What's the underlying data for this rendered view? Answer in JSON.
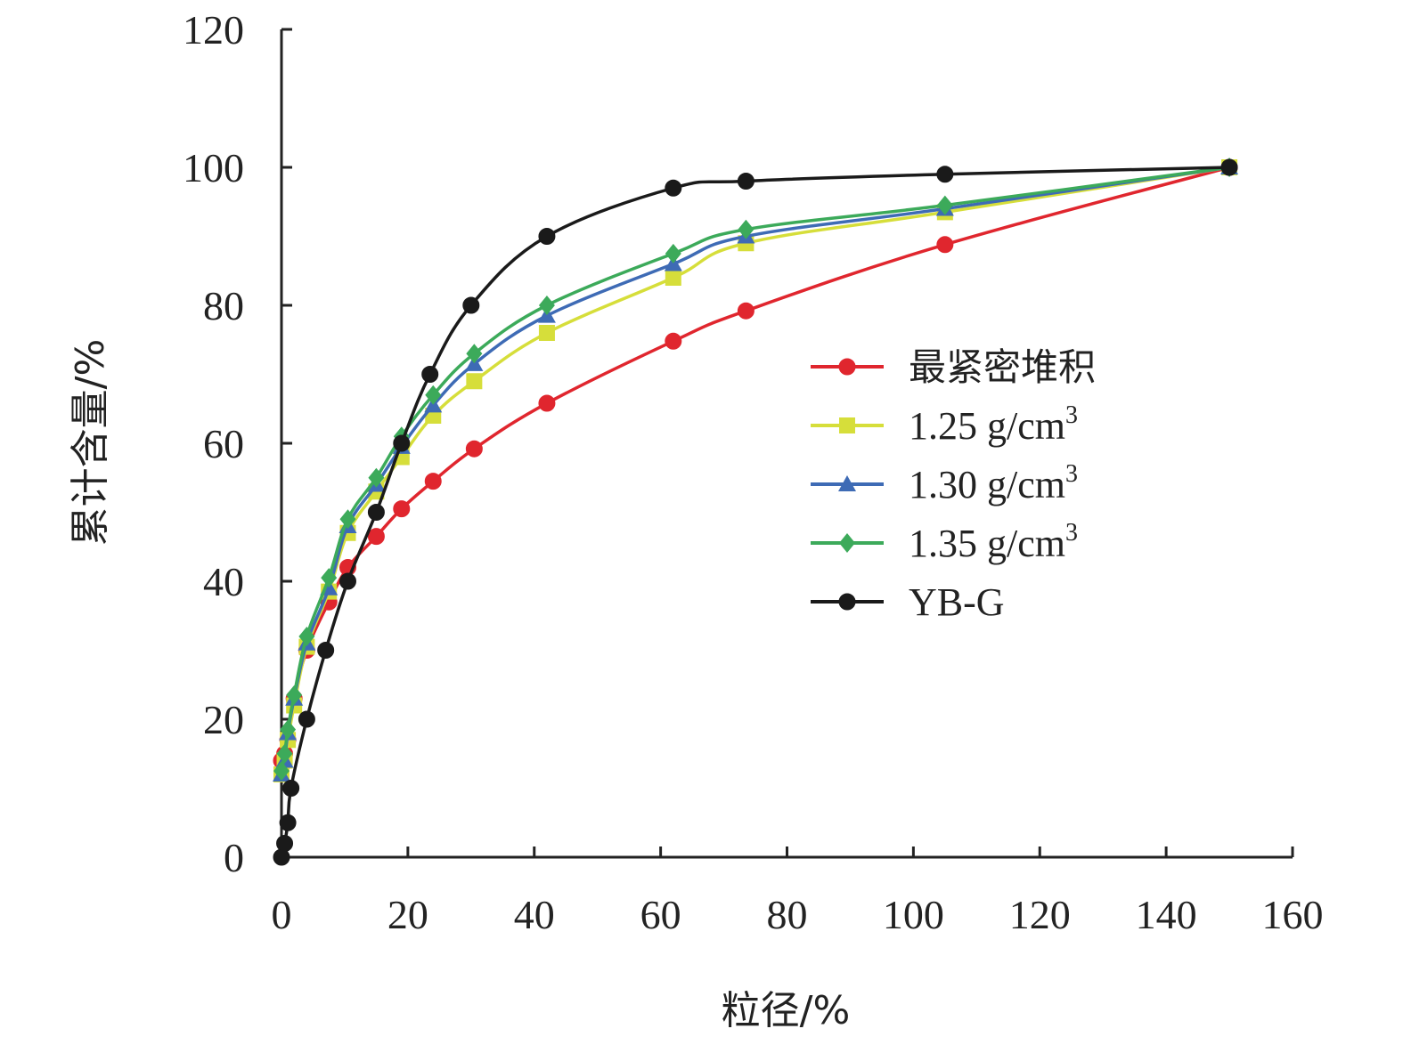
{
  "chart_data": {
    "type": "line",
    "title": "",
    "xlabel": "粒径/%",
    "ylabel": "累计含量/%",
    "xlim": [
      0,
      160
    ],
    "ylim": [
      0,
      120
    ],
    "xticks": [
      0,
      20,
      40,
      60,
      80,
      100,
      120,
      140,
      160
    ],
    "yticks": [
      0,
      20,
      40,
      60,
      80,
      100,
      120
    ],
    "grid": false,
    "legend_position": "right",
    "series": [
      {
        "name": "最紧密堆积",
        "color": "#e0262e",
        "marker": "circle",
        "points": [
          [
            0,
            14
          ],
          [
            0.5,
            15
          ],
          [
            1,
            17
          ],
          [
            2,
            23
          ],
          [
            4,
            30
          ],
          [
            7.5,
            37
          ],
          [
            10.5,
            42
          ],
          [
            15,
            46.5
          ],
          [
            19,
            50.5
          ],
          [
            24,
            54.5
          ],
          [
            30.5,
            59.2
          ],
          [
            42,
            65.8
          ],
          [
            62,
            74.8
          ],
          [
            73.5,
            79.2
          ],
          [
            105,
            88.8
          ],
          [
            150,
            100
          ]
        ]
      },
      {
        "name": "1.25 g/cm",
        "sup": "3",
        "color": "#d6de3a",
        "marker": "square",
        "points": [
          [
            0,
            12
          ],
          [
            0.5,
            14
          ],
          [
            1,
            17
          ],
          [
            2,
            22
          ],
          [
            4,
            30.5
          ],
          [
            7.5,
            38.5
          ],
          [
            10.5,
            47
          ],
          [
            15,
            53
          ],
          [
            19,
            58
          ],
          [
            24,
            64
          ],
          [
            30.5,
            69
          ],
          [
            42,
            76
          ],
          [
            62,
            84
          ],
          [
            73.5,
            89
          ],
          [
            105,
            93.5
          ],
          [
            150,
            100
          ]
        ]
      },
      {
        "name": "1.30 g/cm",
        "sup": "3",
        "color": "#3e6bb5",
        "marker": "triangle",
        "points": [
          [
            0,
            12
          ],
          [
            0.5,
            14
          ],
          [
            1,
            18
          ],
          [
            2,
            23
          ],
          [
            4,
            31
          ],
          [
            7.5,
            39
          ],
          [
            10.5,
            48
          ],
          [
            15,
            54
          ],
          [
            19,
            59.5
          ],
          [
            24,
            65.5
          ],
          [
            30.5,
            71.5
          ],
          [
            42,
            78.5
          ],
          [
            62,
            86
          ],
          [
            73.5,
            90
          ],
          [
            105,
            94
          ],
          [
            150,
            100
          ]
        ]
      },
      {
        "name": "1.35 g/cm",
        "sup": "3",
        "color": "#3caa5a",
        "marker": "diamond",
        "points": [
          [
            0,
            12.5
          ],
          [
            0.5,
            15
          ],
          [
            1,
            18.5
          ],
          [
            2,
            23.5
          ],
          [
            4,
            32
          ],
          [
            7.5,
            40.5
          ],
          [
            10.5,
            49
          ],
          [
            15,
            55
          ],
          [
            19,
            61
          ],
          [
            24,
            67
          ],
          [
            30.5,
            73
          ],
          [
            42,
            80
          ],
          [
            62,
            87.5
          ],
          [
            73.5,
            91
          ],
          [
            105,
            94.5
          ],
          [
            150,
            100
          ]
        ]
      },
      {
        "name": "YB-G",
        "color": "#1a1a1a",
        "marker": "circle",
        "points": [
          [
            0,
            0
          ],
          [
            0.5,
            2
          ],
          [
            1,
            5
          ],
          [
            1.5,
            10
          ],
          [
            4,
            20
          ],
          [
            7,
            30
          ],
          [
            10.5,
            40
          ],
          [
            15,
            50
          ],
          [
            19,
            60
          ],
          [
            23.5,
            70
          ],
          [
            30,
            80
          ],
          [
            42,
            90
          ],
          [
            62,
            97
          ],
          [
            73.5,
            98
          ],
          [
            105,
            99
          ],
          [
            150,
            100
          ]
        ]
      }
    ]
  }
}
